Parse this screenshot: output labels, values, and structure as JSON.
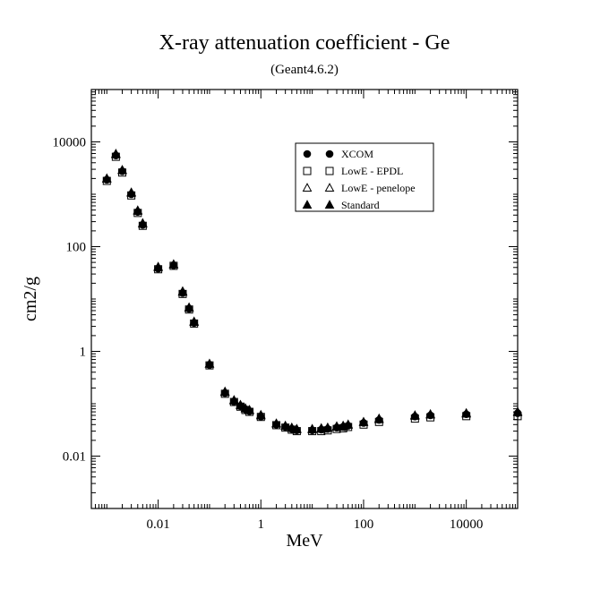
{
  "chart_data": {
    "type": "scatter",
    "title": "X-ray attenuation coefficient - Ge",
    "subtitle": "(Geant4.6.2)",
    "xlabel": "MeV",
    "ylabel": "cm2/g",
    "x_scale": "log",
    "y_scale": "log",
    "xlim": [
      0.0005,
      100000
    ],
    "ylim": [
      0.001,
      100000
    ],
    "x_ticks": [
      {
        "value": 0.01,
        "label": "0.01"
      },
      {
        "value": 1,
        "label": "1"
      },
      {
        "value": 100,
        "label": "100"
      },
      {
        "value": 10000,
        "label": "10000"
      }
    ],
    "y_ticks": [
      {
        "value": 0.01,
        "label": "0.01"
      },
      {
        "value": 1,
        "label": "1"
      },
      {
        "value": 100,
        "label": "100"
      },
      {
        "value": 10000,
        "label": "10000"
      }
    ],
    "grid": false,
    "legend_position": "top-right",
    "series": [
      {
        "name": "XCOM",
        "marker": "circle",
        "x": [
          0.001,
          0.0015,
          0.002,
          0.003,
          0.004,
          0.005,
          0.01,
          0.02,
          0.03,
          0.04,
          0.05,
          0.1,
          0.2,
          0.3,
          0.4,
          0.5,
          0.6,
          1,
          2,
          3,
          4,
          5,
          10,
          15,
          20,
          30,
          40,
          50,
          100,
          200,
          1000,
          2000,
          10000,
          100000
        ],
        "y": [
          1890,
          5500,
          2750,
          1000,
          460,
          260,
          38,
          44,
          13,
          6.5,
          3.5,
          0.55,
          0.16,
          0.11,
          0.09,
          0.078,
          0.072,
          0.057,
          0.04,
          0.036,
          0.033,
          0.031,
          0.031,
          0.032,
          0.033,
          0.035,
          0.036,
          0.038,
          0.043,
          0.049,
          0.057,
          0.06,
          0.063,
          0.066
        ]
      },
      {
        "name": "LowE - EPDL",
        "marker": "square",
        "x": [
          0.001,
          0.0015,
          0.002,
          0.003,
          0.004,
          0.005,
          0.01,
          0.02,
          0.03,
          0.04,
          0.05,
          0.1,
          0.2,
          0.3,
          0.4,
          0.5,
          0.6,
          1,
          2,
          3,
          4,
          5,
          10,
          15,
          20,
          30,
          40,
          50,
          100,
          200,
          1000,
          2000,
          10000,
          100000
        ],
        "y": [
          1800,
          5200,
          2600,
          950,
          440,
          250,
          37,
          43,
          12.5,
          6.3,
          3.4,
          0.54,
          0.155,
          0.108,
          0.088,
          0.076,
          0.07,
          0.056,
          0.039,
          0.035,
          0.032,
          0.03,
          0.03,
          0.03,
          0.031,
          0.033,
          0.034,
          0.036,
          0.04,
          0.045,
          0.052,
          0.055,
          0.058,
          0.058
        ]
      },
      {
        "name": "LowE - penelope",
        "marker": "triangle-open",
        "x": [
          0.001,
          0.0015,
          0.002,
          0.003,
          0.004,
          0.005,
          0.01,
          0.02,
          0.03,
          0.04,
          0.05,
          0.1,
          0.2,
          0.3,
          0.4,
          0.5,
          0.6,
          1,
          2,
          3,
          4,
          5,
          10,
          15,
          20,
          30,
          40,
          50,
          100,
          200,
          1000,
          2000,
          10000,
          100000
        ],
        "y": [
          1950,
          5700,
          2850,
          1050,
          475,
          270,
          40,
          45,
          13.5,
          6.7,
          3.6,
          0.57,
          0.165,
          0.114,
          0.092,
          0.08,
          0.074,
          0.059,
          0.041,
          0.037,
          0.034,
          0.032,
          0.032,
          0.033,
          0.034,
          0.036,
          0.037,
          0.039,
          0.044,
          0.05,
          0.058,
          0.061,
          0.064,
          0.068
        ]
      },
      {
        "name": "Standard",
        "marker": "triangle",
        "x": [
          0.001,
          0.0015,
          0.002,
          0.003,
          0.004,
          0.005,
          0.01,
          0.02,
          0.03,
          0.04,
          0.05,
          0.1,
          0.2,
          0.3,
          0.4,
          0.5,
          0.6,
          1,
          2,
          3,
          4,
          5,
          10,
          15,
          20,
          30,
          40,
          50,
          100,
          200,
          1000,
          2000,
          10000,
          100000
        ],
        "y": [
          2000,
          5900,
          2900,
          1080,
          490,
          280,
          41,
          46,
          14,
          6.9,
          3.7,
          0.58,
          0.17,
          0.117,
          0.095,
          0.082,
          0.076,
          0.061,
          0.042,
          0.038,
          0.035,
          0.033,
          0.033,
          0.034,
          0.035,
          0.037,
          0.038,
          0.04,
          0.045,
          0.052,
          0.06,
          0.063,
          0.066,
          0.07
        ]
      }
    ]
  }
}
